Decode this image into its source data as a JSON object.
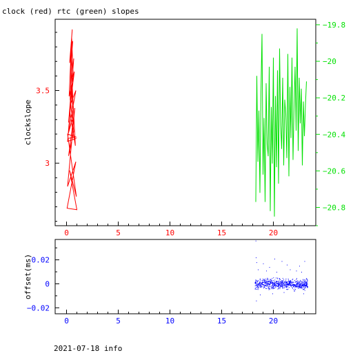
{
  "title": "clock (red) rtc (green) slopes",
  "footer": "2021-07-18 info",
  "colors": {
    "clock": "#ff0000",
    "rtc": "#00e000",
    "offset": "#0000ff",
    "axis": "#000000"
  },
  "chart_data": [
    {
      "type": "line",
      "ylabel": "clockslope",
      "xlim": [
        -1.1,
        24.1
      ],
      "xticks": [
        0,
        5,
        10,
        15,
        20
      ],
      "ylim": [
        2.57,
        3.99
      ],
      "left_yticks": [
        3,
        3.5
      ],
      "right_ylim": [
        -20.9,
        -19.77
      ],
      "right_yticks": [
        -19.8,
        -20,
        -20.2,
        -20.4,
        -20.6,
        -20.8
      ],
      "series": [
        {
          "name": "clock",
          "axis": "left",
          "color": "#ff0000",
          "x": [
            0.95,
            0.1,
            0.55,
            0.2,
            0.7,
            0.3,
            0.85,
            0.45,
            0.6,
            0.15,
            0.9,
            0.35,
            0.75,
            0.25,
            0.5,
            0.65,
            0.4,
            0.55,
            0.3,
            0.6,
            0.45,
            0.5,
            0.35,
            0.7,
            0.2,
            0.8,
            0.1,
            0.9,
            0.05,
            1.0,
            0.3,
            0.95,
            0.1,
            0.9,
            0.1
          ],
          "y": [
            3.17,
            3.15,
            3.53,
            3.28,
            3.72,
            3.36,
            3.12,
            3.66,
            3.31,
            3.2,
            3.5,
            3.4,
            3.63,
            3.46,
            3.86,
            3.58,
            3.77,
            3.92,
            3.69,
            3.84,
            3.7,
            3.79,
            3.44,
            3.22,
            3.05,
            3.38,
            2.84,
            3.01,
            2.69,
            2.68,
            2.95,
            2.77,
            3.2,
            3.18,
            3.17
          ]
        },
        {
          "name": "rtc",
          "axis": "right",
          "color": "#00e000",
          "x": [
            18.3,
            18.4,
            18.5,
            18.6,
            18.7,
            18.8,
            18.9,
            19.0,
            19.1,
            19.2,
            19.3,
            19.4,
            19.5,
            19.6,
            19.7,
            19.8,
            19.9,
            20.0,
            20.1,
            20.2,
            20.3,
            20.4,
            20.5,
            20.6,
            20.7,
            20.8,
            20.9,
            21.0,
            21.1,
            21.2,
            21.3,
            21.4,
            21.5,
            21.6,
            21.7,
            21.8,
            21.9,
            22.0,
            22.1,
            22.2,
            22.3,
            22.4,
            22.5,
            22.6,
            22.7,
            22.8,
            22.9,
            23.0,
            23.1,
            23.2
          ],
          "y": [
            -20.77,
            -20.08,
            -20.55,
            -20.27,
            -20.72,
            -20.17,
            -19.85,
            -20.62,
            -20.31,
            -20.77,
            -20.12,
            -20.45,
            -20.52,
            -20.03,
            -20.82,
            -20.25,
            -20.56,
            -19.98,
            -20.85,
            -20.19,
            -20.58,
            -20.05,
            -20.67,
            -19.93,
            -20.35,
            -20.48,
            -20.09,
            -20.57,
            -20.21,
            -20.29,
            -20.53,
            -19.96,
            -20.63,
            -20.14,
            -20.42,
            -19.98,
            -20.54,
            -20.25,
            -20.03,
            -20.38,
            -19.82,
            -20.49,
            -20.09,
            -20.34,
            -20.15,
            -20.57,
            -20.22,
            -20.41,
            -20.24,
            -20.11
          ]
        }
      ]
    },
    {
      "type": "scatter",
      "ylabel": "offset(ms)",
      "xlim": [
        -1.1,
        24.1
      ],
      "xticks": [
        0,
        5,
        10,
        15,
        20
      ],
      "ylim": [
        -0.025,
        0.037
      ],
      "yticks": [
        0.02,
        0,
        -0.02
      ],
      "series": [
        {
          "name": "offset",
          "color": "#0000ff",
          "x_range": [
            18.2,
            23.3
          ],
          "band": [
            -0.005,
            0.005
          ],
          "outliers": [
            [
              18.28,
              0.036
            ],
            [
              18.3,
              0.022
            ],
            [
              18.33,
              -0.014
            ],
            [
              18.36,
              0.018
            ],
            [
              18.5,
              0.012
            ],
            [
              18.7,
              -0.009
            ],
            [
              19.0,
              0.017
            ],
            [
              19.3,
              0.011
            ],
            [
              19.6,
              0.014
            ],
            [
              19.9,
              -0.008
            ],
            [
              20.1,
              0.021
            ],
            [
              20.3,
              0.01
            ],
            [
              20.8,
              0.019
            ],
            [
              21.0,
              -0.007
            ],
            [
              21.3,
              0.016
            ],
            [
              21.6,
              0.012
            ],
            [
              22.0,
              -0.006
            ],
            [
              22.2,
              0.011
            ],
            [
              22.5,
              0.015
            ],
            [
              22.7,
              0.01
            ],
            [
              22.9,
              -0.008
            ],
            [
              23.0,
              0.019
            ]
          ]
        }
      ]
    }
  ]
}
